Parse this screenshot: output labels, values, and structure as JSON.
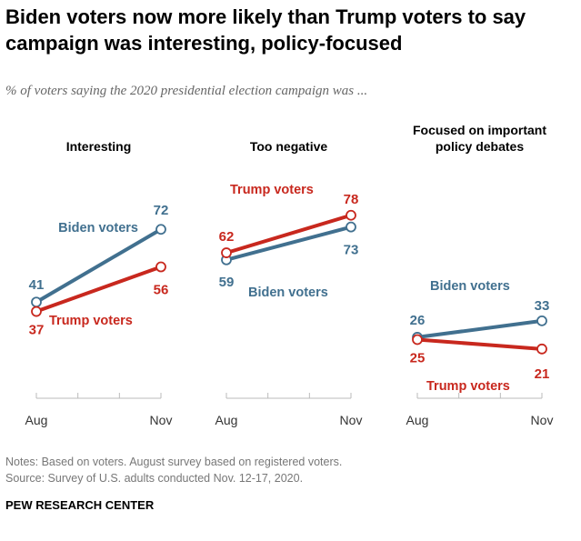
{
  "title": "Biden voters now more likely than Trump voters to say campaign was interesting, policy-focused",
  "subtitle": "% of voters saying the 2020 presidential election campaign was ...",
  "notes": "Notes: Based on voters. August survey based on registered voters.",
  "source": "Source: Survey of U.S. adults conducted Nov. 12-17, 2020.",
  "brand": "PEW RESEARCH CENTER",
  "colors": {
    "biden": "#41708f",
    "trump": "#c8281e"
  },
  "chart_data": [
    {
      "type": "line",
      "title": "Interesting",
      "categories": [
        "Aug",
        "Nov"
      ],
      "series": [
        {
          "name": "Biden voters",
          "values": [
            41,
            72
          ]
        },
        {
          "name": "Trump voters",
          "values": [
            37,
            56
          ]
        }
      ]
    },
    {
      "type": "line",
      "title": "Too negative",
      "categories": [
        "Aug",
        "Nov"
      ],
      "series": [
        {
          "name": "Biden voters",
          "values": [
            59,
            73
          ]
        },
        {
          "name": "Trump voters",
          "values": [
            62,
            78
          ]
        }
      ]
    },
    {
      "type": "line",
      "title": "Focused on important policy debates",
      "categories": [
        "Aug",
        "Nov"
      ],
      "series": [
        {
          "name": "Biden voters",
          "values": [
            26,
            33
          ]
        },
        {
          "name": "Trump voters",
          "values": [
            25,
            21
          ]
        }
      ]
    }
  ]
}
